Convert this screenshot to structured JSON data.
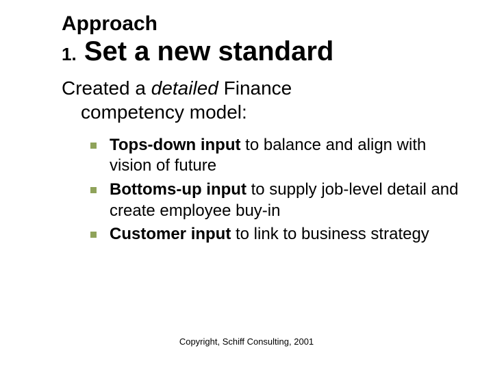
{
  "title": {
    "line1": "Approach",
    "number": "1.",
    "line2": "Set a new standard"
  },
  "lead": {
    "prefix": "Created a ",
    "emphasis": "detailed",
    "mid": " Finance",
    "line2": "competency model:"
  },
  "bullets": [
    {
      "bold": "Tops-down input",
      "rest": " to balance and align with vision of future"
    },
    {
      "bold": "Bottoms-up input",
      "rest": " to supply job-level detail and create employee buy-in"
    },
    {
      "bold": "Customer input",
      "rest": " to link to business strategy"
    }
  ],
  "footer": "Copyright, Schiff Consulting, 2001",
  "style": {
    "bullet_color": "#8fa35a",
    "text_color": "#000000",
    "background": "#ffffff",
    "title_small_fontsize": 30,
    "title_large_fontsize": 40,
    "lead_fontsize": 28,
    "bullet_fontsize": 24,
    "footer_fontsize": 13
  }
}
